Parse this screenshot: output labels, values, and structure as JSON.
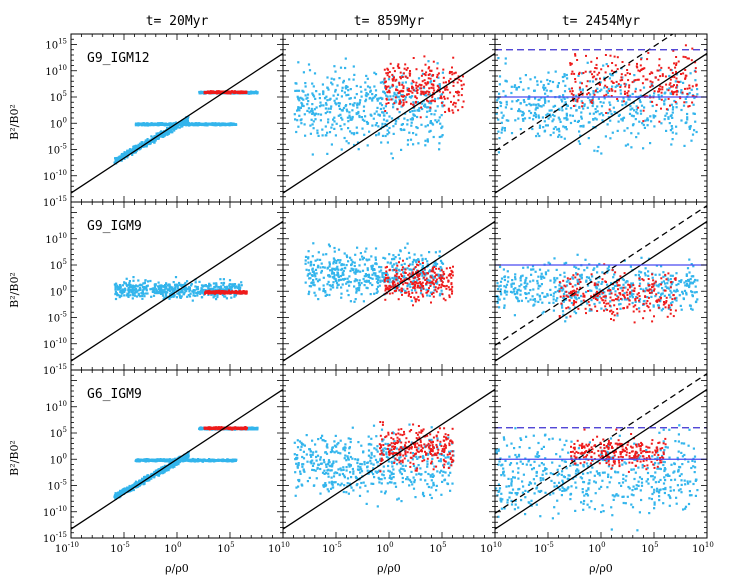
{
  "figure": {
    "columns": [
      {
        "title": "t=  20Myr"
      },
      {
        "title": "t=  859Myr"
      },
      {
        "title": "t=  2454Myr"
      }
    ],
    "rows": [
      {
        "label": "G9_IGM12"
      },
      {
        "label": "G9_IGM9"
      },
      {
        "label": "G6_IGM9"
      }
    ],
    "xlabel": "ρ/ρ0",
    "ylabel": "B²/B0²",
    "x_ticks": [
      {
        "base": "10",
        "exp": "-10"
      },
      {
        "base": "10",
        "exp": "-5"
      },
      {
        "base": "10",
        "exp": "0"
      },
      {
        "base": "10",
        "exp": "5"
      },
      {
        "base": "10",
        "exp": "10"
      }
    ],
    "y_ticks": [
      {
        "base": "10",
        "exp": "-15"
      },
      {
        "base": "10",
        "exp": "-10"
      },
      {
        "base": "10",
        "exp": "-5"
      },
      {
        "base": "10",
        "exp": "0"
      },
      {
        "base": "10",
        "exp": "5"
      },
      {
        "base": "10",
        "exp": "10"
      },
      {
        "base": "10",
        "exp": "15"
      }
    ],
    "colors": {
      "cyan": "#33b5ec",
      "red": "#ee1b1b",
      "blue": "#4a4af0",
      "dashblue": "#3b2fd0",
      "black": "#000000"
    }
  },
  "chart_data": {
    "type": "scatter",
    "title": "",
    "xlabel": "ρ/ρ0",
    "ylabel": "B²/B0²",
    "xscale": "log",
    "yscale": "log",
    "xlim": [
      -10,
      10
    ],
    "ylim": [
      -15,
      17
    ],
    "units_note": "limits and values in log10 units",
    "legend": [],
    "panels": [
      {
        "row": "G9_IGM12",
        "col": "t=  20Myr",
        "reference_lines": [
          {
            "kind": "solid",
            "slope": 1.33,
            "intercept": 0
          }
        ],
        "cyan_regions": [
          {
            "x": [
              -6,
              1
            ],
            "y": [
              -7,
              1
            ],
            "note": "diagonal band"
          },
          {
            "x": [
              -4,
              5.5
            ],
            "y": [
              -0.3,
              0.3
            ],
            "note": "flat band at 10^0"
          },
          {
            "x": [
              2,
              7.5
            ],
            "y": [
              5.8,
              6.3
            ],
            "note": "flat band near 10^6"
          }
        ],
        "red_regions": [
          {
            "x": [
              2.5,
              6.5
            ],
            "y": [
              5.8,
              6.4
            ]
          }
        ]
      },
      {
        "row": "G9_IGM12",
        "col": "t=  859Myr",
        "reference_lines": [
          {
            "kind": "solid",
            "slope": 1.33,
            "intercept": 0
          }
        ],
        "cyan_regions": [
          {
            "x": [
              -9,
              5
            ],
            "y": [
              -8,
              14
            ]
          }
        ],
        "red_regions": [
          {
            "x": [
              -0.5,
              7
            ],
            "y": [
              0,
              14
            ]
          }
        ]
      },
      {
        "row": "G9_IGM12",
        "col": "t=  2454Myr",
        "reference_lines": [
          {
            "kind": "solid",
            "slope": 1.33,
            "intercept": 0
          },
          {
            "kind": "dashed",
            "slope": 1.33,
            "intercept": 8
          },
          {
            "kind": "hline",
            "y": 5
          },
          {
            "kind": "hline-dashed",
            "y": 14
          }
        ],
        "cyan_regions": [
          {
            "x": [
              -10,
              9
            ],
            "y": [
              -7,
              14
            ]
          }
        ],
        "red_regions": [
          {
            "x": [
              -3,
              9
            ],
            "y": [
              0,
              16
            ]
          }
        ]
      },
      {
        "row": "G9_IGM9",
        "col": "t=  20Myr",
        "reference_lines": [
          {
            "kind": "solid",
            "slope": 1.33,
            "intercept": 0
          }
        ],
        "cyan_regions": [
          {
            "x": [
              -6,
              6
            ],
            "y": [
              -2,
              3
            ]
          }
        ],
        "red_regions": [
          {
            "x": [
              2.5,
              6.5
            ],
            "y": [
              -0.4,
              0.4
            ]
          }
        ]
      },
      {
        "row": "G9_IGM9",
        "col": "t=  859Myr",
        "reference_lines": [
          {
            "kind": "solid",
            "slope": 1.33,
            "intercept": 0
          }
        ],
        "cyan_regions": [
          {
            "x": [
              -8,
              5
            ],
            "y": [
              -3,
              10
            ]
          }
        ],
        "red_regions": [
          {
            "x": [
              -0.5,
              6
            ],
            "y": [
              -3,
              7
            ]
          }
        ]
      },
      {
        "row": "G9_IGM9",
        "col": "t=  2454Myr",
        "reference_lines": [
          {
            "kind": "solid",
            "slope": 1.33,
            "intercept": 0
          },
          {
            "kind": "dashed",
            "slope": 1.33,
            "intercept": 3
          },
          {
            "kind": "hline",
            "y": 5
          }
        ],
        "cyan_regions": [
          {
            "x": [
              -10,
              9
            ],
            "y": [
              -6,
              8
            ]
          }
        ],
        "red_regions": [
          {
            "x": [
              -4,
              7
            ],
            "y": [
              -7,
              6
            ]
          }
        ]
      },
      {
        "row": "G6_IGM9",
        "col": "t=  20Myr",
        "reference_lines": [
          {
            "kind": "solid",
            "slope": 1.33,
            "intercept": 0
          }
        ],
        "cyan_regions": [
          {
            "x": [
              -6,
              1
            ],
            "y": [
              -7,
              1
            ],
            "note": "diagonal band"
          },
          {
            "x": [
              -4,
              5.5
            ],
            "y": [
              -0.3,
              0.3
            ],
            "note": "flat band at 10^0"
          },
          {
            "x": [
              2,
              7.5
            ],
            "y": [
              5.8,
              6.3
            ],
            "note": "flat band near 10^6"
          }
        ],
        "red_regions": [
          {
            "x": [
              2.5,
              6.5
            ],
            "y": [
              5.8,
              6.4
            ]
          }
        ]
      },
      {
        "row": "G6_IGM9",
        "col": "t=  859Myr",
        "reference_lines": [
          {
            "kind": "solid",
            "slope": 1.33,
            "intercept": 0
          }
        ],
        "cyan_regions": [
          {
            "x": [
              -9,
              6
            ],
            "y": [
              -10,
              8
            ]
          }
        ],
        "red_regions": [
          {
            "x": [
              -1,
              6
            ],
            "y": [
              -3,
              8
            ]
          }
        ]
      },
      {
        "row": "G6_IGM9",
        "col": "t=  2454Myr",
        "reference_lines": [
          {
            "kind": "solid",
            "slope": 1.33,
            "intercept": 0
          },
          {
            "kind": "dashed",
            "slope": 1.33,
            "intercept": 3
          },
          {
            "kind": "hline",
            "y": 0
          },
          {
            "kind": "hline-dashed",
            "y": 6
          }
        ],
        "cyan_regions": [
          {
            "x": [
              -10,
              9
            ],
            "y": [
              -14,
              8
            ]
          }
        ],
        "red_regions": [
          {
            "x": [
              -3,
              6
            ],
            "y": [
              -3,
              6
            ]
          }
        ]
      }
    ]
  }
}
